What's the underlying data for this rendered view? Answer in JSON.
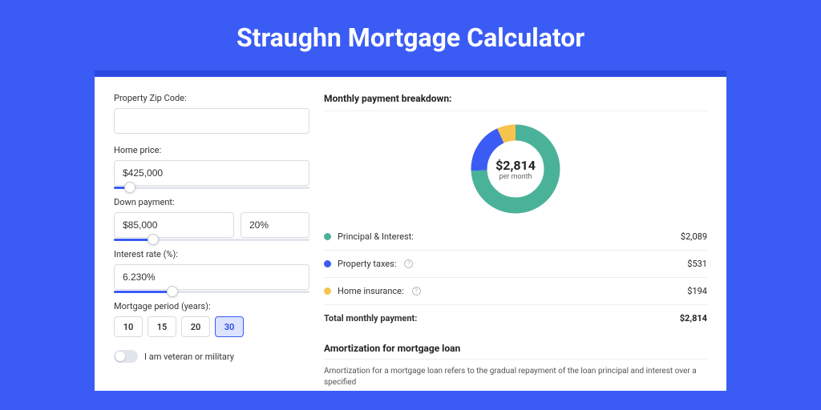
{
  "colors": {
    "page_bg": "#3a5cf5",
    "panel_border": "#2a4ae0",
    "panel_bg": "#ffffff",
    "title_color": "#ffffff",
    "slider_fill": "#3a5cf5",
    "period_active_bg": "#dbe3ff"
  },
  "title": "Straughn Mortgage Calculator",
  "form": {
    "zip": {
      "label": "Property Zip Code:",
      "value": ""
    },
    "home_price": {
      "label": "Home price:",
      "value": "$425,000",
      "slider_pct": 8
    },
    "down_payment": {
      "label": "Down payment:",
      "value": "$85,000",
      "pct_value": "20%",
      "slider_pct": 20
    },
    "interest_rate": {
      "label": "Interest rate (%):",
      "value": "6.230%",
      "slider_pct": 30
    },
    "period": {
      "label": "Mortgage period (years):",
      "options": [
        "10",
        "15",
        "20",
        "30"
      ],
      "selected": "30"
    },
    "veteran": {
      "label": "I am veteran or military",
      "checked": false
    }
  },
  "breakdown": {
    "heading": "Monthly payment breakdown:",
    "donut": {
      "amount": "$2,814",
      "sub": "per month",
      "segments": [
        {
          "key": "pi",
          "color": "#4bb29a",
          "pct": 74.2
        },
        {
          "key": "tax",
          "color": "#3a5cf5",
          "pct": 18.9
        },
        {
          "key": "ins",
          "color": "#f6c34c",
          "pct": 6.9
        }
      ]
    },
    "rows": [
      {
        "color": "#4bb29a",
        "label": "Principal & Interest:",
        "value": "$2,089",
        "help": false
      },
      {
        "color": "#3a5cf5",
        "label": "Property taxes:",
        "value": "$531",
        "help": true
      },
      {
        "color": "#f6c34c",
        "label": "Home insurance:",
        "value": "$194",
        "help": true
      }
    ],
    "total": {
      "label": "Total monthly payment:",
      "value": "$2,814"
    }
  },
  "amortization": {
    "heading": "Amortization for mortgage loan",
    "text": "Amortization for a mortgage loan refers to the gradual repayment of the loan principal and interest over a specified"
  }
}
